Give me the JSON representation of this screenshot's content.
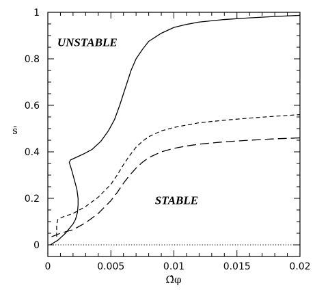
{
  "chart_data": {
    "type": "line",
    "xlabel": "Ω̂φ",
    "ylabel": "s̄",
    "xlim": [
      0,
      0.02
    ],
    "ylim": [
      -0.05,
      1
    ],
    "x_ticks": [
      "0",
      "0.005",
      "0.01",
      "0.015",
      "0.02"
    ],
    "y_ticks": [
      "0",
      "0.2",
      "0.4",
      "0.6",
      "0.8",
      "1"
    ],
    "grid": false,
    "annotations": [
      {
        "text": "UNSTABLE",
        "x": 0.00075,
        "y": 0.855
      },
      {
        "text": "STABLE",
        "x": 0.0085,
        "y": 0.175
      }
    ],
    "series": [
      {
        "style": "solid",
        "x": [
          0.0002,
          0.0005,
          0.0008,
          0.0011,
          0.0014,
          0.0017,
          0.002,
          0.0022,
          0.00235,
          0.0024,
          0.0024,
          0.0023,
          0.0021,
          0.0019,
          0.0017,
          0.0018,
          0.0022,
          0.0028,
          0.0035,
          0.0042,
          0.0048,
          0.0053,
          0.0057,
          0.006,
          0.0063,
          0.0066,
          0.007,
          0.0075,
          0.008,
          0.009,
          0.01,
          0.011,
          0.012,
          0.014,
          0.016,
          0.018,
          0.02
        ],
        "y": [
          0.0,
          0.01,
          0.02,
          0.035,
          0.05,
          0.07,
          0.09,
          0.11,
          0.14,
          0.17,
          0.2,
          0.24,
          0.28,
          0.32,
          0.355,
          0.365,
          0.375,
          0.39,
          0.41,
          0.445,
          0.49,
          0.54,
          0.6,
          0.65,
          0.7,
          0.75,
          0.8,
          0.84,
          0.875,
          0.91,
          0.935,
          0.948,
          0.958,
          0.969,
          0.976,
          0.982,
          0.987
        ]
      },
      {
        "style": "dashed",
        "x": [
          0.0007,
          0.0007,
          0.0008,
          0.0012,
          0.002,
          0.003,
          0.004,
          0.005,
          0.0055,
          0.006,
          0.0065,
          0.007,
          0.0075,
          0.008,
          0.009,
          0.01,
          0.011,
          0.012,
          0.014,
          0.016,
          0.018,
          0.02
        ],
        "y": [
          0.035,
          0.085,
          0.11,
          0.12,
          0.135,
          0.165,
          0.205,
          0.26,
          0.3,
          0.345,
          0.385,
          0.42,
          0.445,
          0.465,
          0.49,
          0.505,
          0.515,
          0.525,
          0.536,
          0.545,
          0.553,
          0.56
        ]
      },
      {
        "style": "long-dashed",
        "x": [
          0.0003,
          0.001,
          0.002,
          0.003,
          0.004,
          0.005,
          0.0055,
          0.006,
          0.0065,
          0.007,
          0.0075,
          0.008,
          0.009,
          0.01,
          0.011,
          0.012,
          0.014,
          0.016,
          0.018,
          0.02
        ],
        "y": [
          0.035,
          0.05,
          0.065,
          0.095,
          0.135,
          0.19,
          0.225,
          0.265,
          0.3,
          0.33,
          0.355,
          0.375,
          0.4,
          0.415,
          0.425,
          0.433,
          0.443,
          0.45,
          0.456,
          0.46
        ]
      },
      {
        "style": "dotted",
        "x": [
          0,
          0.02
        ],
        "y": [
          0,
          0
        ]
      }
    ]
  }
}
